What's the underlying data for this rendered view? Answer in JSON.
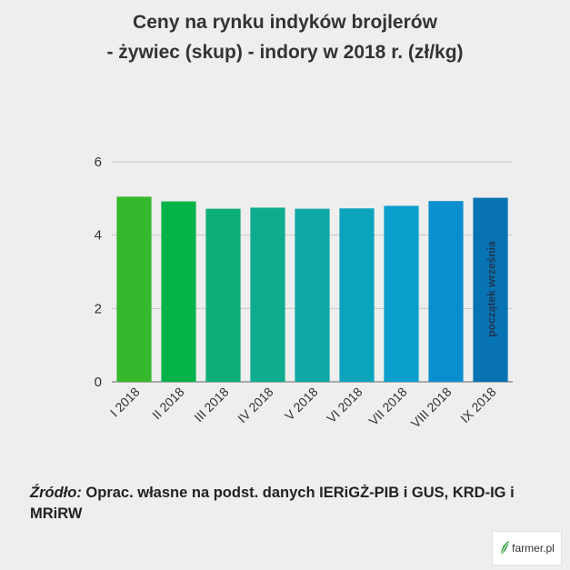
{
  "title": {
    "line1": "Ceny na rynku indyków brojlerów",
    "line2": "- żywiec (skup) - indory w 2018 r. (zł/kg)"
  },
  "chart_data": {
    "type": "bar",
    "categories": [
      "I 2018",
      "II 2018",
      "III 2018",
      "IV 2018",
      "V 2018",
      "VI 2018",
      "VII 2018",
      "VIII 2018",
      "IX 2018"
    ],
    "values": [
      5.05,
      4.92,
      4.72,
      4.75,
      4.72,
      4.73,
      4.8,
      4.93,
      5.02
    ],
    "colors": [
      "#36b82c",
      "#05b349",
      "#0cae75",
      "#0eac8e",
      "#0ea8a6",
      "#0ca4bd",
      "#0a9fcc",
      "#0a8fce",
      "#0873b3"
    ],
    "ylim": [
      0,
      6
    ],
    "yticks": [
      0,
      2,
      4,
      6
    ],
    "grid": true,
    "annotation": "początek września"
  },
  "source": {
    "label": "Źródło:",
    "text": " Oprac. własne na podst. danych IERiGŻ-PIB i GUS, KRD-IG i MRiRW"
  },
  "logo": {
    "text": "farmer.pl",
    "color": "#2e9b3a"
  }
}
